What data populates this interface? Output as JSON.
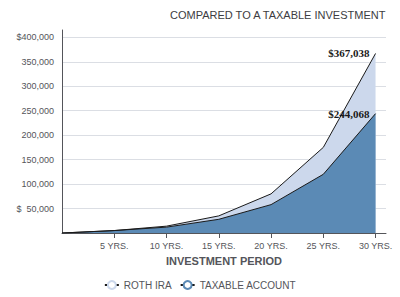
{
  "chart_data": {
    "type": "area",
    "title": "COMPARED TO A TAXABLE INVESTMENT",
    "xlabel": "INVESTMENT PERIOD",
    "x": [
      0,
      5,
      10,
      15,
      20,
      25,
      30
    ],
    "series": [
      {
        "name": "ROTH IRA",
        "color": "#ccd8ec",
        "values": [
          0,
          5000,
          14000,
          35000,
          80000,
          175000,
          367038
        ]
      },
      {
        "name": "TAXABLE ACCOUNT",
        "color": "#5b8ab5",
        "values": [
          0,
          5000,
          12000,
          28000,
          58000,
          120000,
          244068
        ]
      }
    ],
    "annotations": [
      {
        "text": "$367,038",
        "series": "ROTH IRA"
      },
      {
        "text": "$244,068",
        "series": "TAXABLE ACCOUNT"
      }
    ],
    "xlim": [
      0,
      31
    ],
    "xticks": [
      {
        "value": 5,
        "label": "5 YRS."
      },
      {
        "value": 10,
        "label": "10 YRS."
      },
      {
        "value": 15,
        "label": "15 YRS."
      },
      {
        "value": 20,
        "label": "20 YRS."
      },
      {
        "value": 25,
        "label": "25 YRS."
      },
      {
        "value": 30,
        "label": "30 YRS."
      }
    ],
    "ylim": [
      0,
      415000
    ],
    "yticks": [
      {
        "value": 50000,
        "label": "$  50,000"
      },
      {
        "value": 100000,
        "label": "100,000"
      },
      {
        "value": 150000,
        "label": "150,000"
      },
      {
        "value": 200000,
        "label": "200,000"
      },
      {
        "value": 250000,
        "label": "250,000"
      },
      {
        "value": 300000,
        "label": "300,000"
      },
      {
        "value": 350000,
        "label": "350,000"
      },
      {
        "value": 400000,
        "label": "$400,000"
      }
    ],
    "grid": true,
    "legend": "bottom"
  }
}
